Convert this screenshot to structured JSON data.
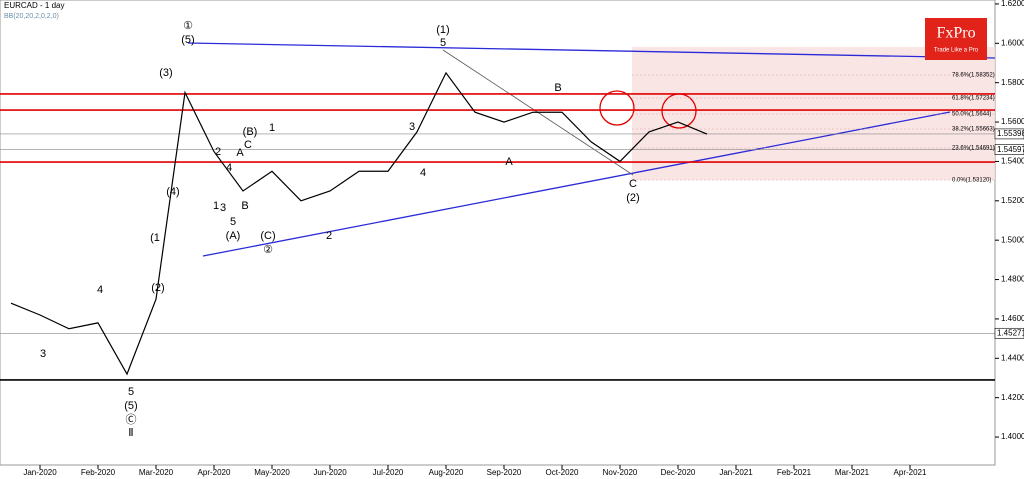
{
  "chart_data": {
    "type": "line",
    "title": "EURCAD - 1 day",
    "subtitle": "BB(20,20,2,0,2,0)",
    "logo": {
      "brand": "FxPro",
      "tagline": "Trade Like a Pro"
    },
    "categories": [
      null,
      "Jan-2020",
      null,
      "Feb-2020",
      null,
      "Mar-2020",
      null,
      "Apr-2020",
      null,
      "May-2020",
      null,
      "Jun-2020",
      null,
      "Jul-2020",
      null,
      "Aug-2020",
      null,
      "Sep-2020",
      null,
      "Oct-2020",
      null,
      "Nov-2020",
      null,
      "Dec-2020",
      null,
      "Jan-2021",
      null,
      "Feb-2021",
      null,
      "Mar-2021",
      null,
      "Apr-2021",
      null
    ],
    "series": [
      {
        "name": "EURCAD",
        "color": "#000000",
        "values": [
          1.468,
          1.462,
          1.455,
          1.458,
          1.432,
          1.47,
          1.575,
          1.545,
          1.525,
          1.535,
          1.52,
          1.525,
          1.535,
          1.535,
          1.555,
          1.585,
          1.565,
          1.56,
          1.565,
          1.565,
          1.55,
          1.54,
          1.555,
          1.56,
          1.5539,
          null,
          null,
          null,
          null,
          null,
          null,
          null,
          null
        ]
      }
    ],
    "ylim": [
      1.3858,
      1.622
    ],
    "yticks": [
      {
        "value": 1.4,
        "label": "1.40000"
      },
      {
        "value": 1.42,
        "label": "1.42000"
      },
      {
        "value": 1.44,
        "label": "1.44000"
      },
      {
        "value": 1.46,
        "label": "1.46000"
      },
      {
        "value": 1.48,
        "label": "1.48000"
      },
      {
        "value": 1.5,
        "label": "1.50000"
      },
      {
        "value": 1.52,
        "label": "1.52000"
      },
      {
        "value": 1.54,
        "label": "1.54000"
      },
      {
        "value": 1.56,
        "label": "1.56000"
      },
      {
        "value": 1.58,
        "label": "1.58000"
      },
      {
        "value": 1.6,
        "label": "1.60000"
      },
      {
        "value": 1.62,
        "label": "1.62000"
      }
    ],
    "levels": [
      {
        "value": 1.5743,
        "color": "#e00000"
      },
      {
        "value": 1.5661,
        "color": "#e00000"
      },
      {
        "value": 1.5397,
        "color": "#e00000"
      },
      {
        "value": 1.429,
        "color": "#000000"
      }
    ],
    "price_labels": [
      {
        "value": 1.55398,
        "label": "1.55398"
      },
      {
        "value": 1.54597,
        "label": "1.54597"
      },
      {
        "value": 1.45271,
        "label": "1.45271"
      }
    ],
    "fib_levels": [
      "78.6%(1.58352)",
      "61.8%(1.57234)",
      "50.0%(1.5644)",
      "38.2%(1.55663)",
      "23.6%(1.54691)",
      "0.0%(1.53120)"
    ],
    "wave_labels": [
      "(3)",
      "①",
      "(5)",
      "(4)",
      "2",
      "4",
      "A",
      "C",
      "(B)",
      "1",
      "1",
      "3",
      "B",
      "5",
      "(A)",
      "(C)",
      "②",
      "2",
      "4",
      "3",
      "(1)",
      "5",
      "B",
      "A",
      "C",
      "(2)",
      "4",
      "(1",
      "(2)",
      "3",
      "5",
      "(5)",
      "Ⓒ",
      "Ⅱ"
    ]
  }
}
